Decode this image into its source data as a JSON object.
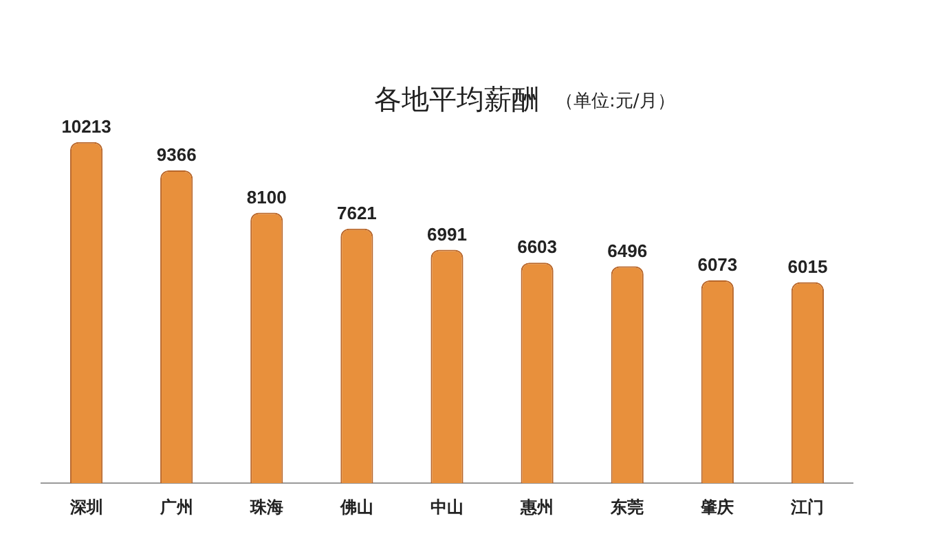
{
  "chart_data": {
    "type": "bar",
    "title": "各地平均薪酬",
    "subtitle": "（单位:元/月）",
    "categories": [
      "深圳",
      "广州",
      "珠海",
      "佛山",
      "中山",
      "惠州",
      "东莞",
      "肇庆",
      "江门"
    ],
    "values": [
      10213,
      9366,
      8100,
      7621,
      6991,
      6603,
      6496,
      6073,
      6015
    ],
    "color": "#e8903c",
    "data_labels": true,
    "grid": false,
    "legend": false
  }
}
